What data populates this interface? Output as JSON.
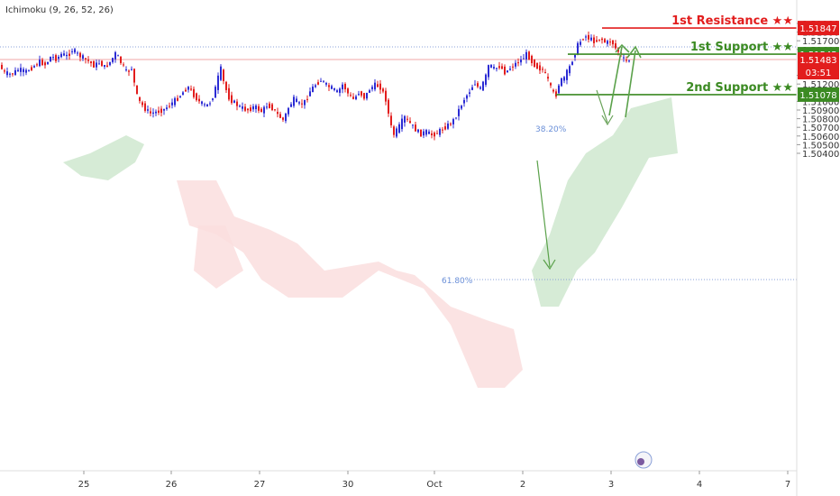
{
  "indicator_label": "Ichimoku (9, 26, 52, 26)",
  "colors": {
    "bull": "#2b2bd4",
    "bear": "#e21d1d",
    "resistance": "#e21d1d",
    "support": "#3b8a22",
    "cloud_green": "#cfe8cf",
    "cloud_red": "#fadede",
    "fib": "#6a8fd8",
    "price_line": "#f2a7a7",
    "arrow": "#5aa14a"
  },
  "chart_data": {
    "type": "candlestick",
    "title": "",
    "xlabel": "",
    "ylabel": "",
    "ylim": [
      1.504,
      1.52
    ],
    "grid": false,
    "x_ticks": [
      "25",
      "26",
      "27",
      "30",
      "Oct",
      "2",
      "3",
      "4",
      "7"
    ],
    "y_ticks": [
      "1.51900",
      "1.51800",
      "1.51700",
      "1.51600",
      "1.51300",
      "1.51200",
      "1.51000",
      "1.50900",
      "1.50800",
      "1.50700",
      "1.50600",
      "1.50500",
      "1.50400"
    ],
    "levels": [
      {
        "name": "1st Resistance ★★",
        "value": 1.51847,
        "label": "1.51847",
        "color": "resistance"
      },
      {
        "name": "1st Support ★★",
        "value": 1.51545,
        "label": "1.51545",
        "color": "support"
      },
      {
        "name": "2nd Support ★★",
        "value": 1.51078,
        "label": "1.51078",
        "color": "support"
      }
    ],
    "current_price": {
      "value": 1.51483,
      "label": "1.51483",
      "countdown": "03:51"
    },
    "fib_levels": [
      {
        "label": "38.20%",
        "value": 1.51545
      },
      {
        "label": "61.80%",
        "value": 1.51035
      }
    ],
    "series_path": [
      [
        0,
        1.5143
      ],
      [
        6,
        1.5133
      ],
      [
        14,
        1.5131
      ],
      [
        22,
        1.5137
      ],
      [
        30,
        1.5134
      ],
      [
        38,
        1.514
      ],
      [
        46,
        1.5146
      ],
      [
        52,
        1.5142
      ],
      [
        58,
        1.5152
      ],
      [
        64,
        1.5149
      ],
      [
        70,
        1.5155
      ],
      [
        76,
        1.5152
      ],
      [
        82,
        1.516
      ],
      [
        88,
        1.5154
      ],
      [
        94,
        1.515
      ],
      [
        100,
        1.5146
      ],
      [
        106,
        1.5141
      ],
      [
        112,
        1.5145
      ],
      [
        118,
        1.5139
      ],
      [
        124,
        1.5146
      ],
      [
        130,
        1.5156
      ],
      [
        136,
        1.5144
      ],
      [
        142,
        1.5133
      ],
      [
        148,
        1.5139
      ],
      [
        152,
        1.511
      ],
      [
        156,
        1.51
      ],
      [
        162,
        1.5092
      ],
      [
        168,
        1.5086
      ],
      [
        176,
        1.5088
      ],
      [
        184,
        1.5091
      ],
      [
        192,
        1.5098
      ],
      [
        198,
        1.5103
      ],
      [
        204,
        1.511
      ],
      [
        210,
        1.5117
      ],
      [
        216,
        1.5108
      ],
      [
        222,
        1.51
      ],
      [
        230,
        1.5094
      ],
      [
        236,
        1.5101
      ],
      [
        242,
        1.512
      ],
      [
        246,
        1.514
      ],
      [
        250,
        1.512
      ],
      [
        256,
        1.5103
      ],
      [
        262,
        1.5098
      ],
      [
        268,
        1.5093
      ],
      [
        276,
        1.509
      ],
      [
        284,
        1.5094
      ],
      [
        292,
        1.5088
      ],
      [
        298,
        1.5096
      ],
      [
        304,
        1.5092
      ],
      [
        310,
        1.5084
      ],
      [
        316,
        1.5078
      ],
      [
        322,
        1.5094
      ],
      [
        328,
        1.5103
      ],
      [
        334,
        1.5096
      ],
      [
        340,
        1.51
      ],
      [
        346,
        1.5113
      ],
      [
        352,
        1.512
      ],
      [
        358,
        1.5125
      ],
      [
        364,
        1.5118
      ],
      [
        370,
        1.5115
      ],
      [
        376,
        1.511
      ],
      [
        382,
        1.512
      ],
      [
        388,
        1.5108
      ],
      [
        394,
        1.5102
      ],
      [
        400,
        1.5111
      ],
      [
        406,
        1.5104
      ],
      [
        412,
        1.5115
      ],
      [
        418,
        1.5119
      ],
      [
        424,
        1.5116
      ],
      [
        430,
        1.5101
      ],
      [
        434,
        1.5076
      ],
      [
        438,
        1.5061
      ],
      [
        444,
        1.507
      ],
      [
        450,
        1.5082
      ],
      [
        456,
        1.5075
      ],
      [
        462,
        1.5068
      ],
      [
        468,
        1.5062
      ],
      [
        474,
        1.5065
      ],
      [
        480,
        1.5061
      ],
      [
        486,
        1.5063
      ],
      [
        492,
        1.5068
      ],
      [
        498,
        1.5072
      ],
      [
        504,
        1.5077
      ],
      [
        510,
        1.5089
      ],
      [
        516,
        1.5102
      ],
      [
        522,
        1.5111
      ],
      [
        528,
        1.5122
      ],
      [
        534,
        1.5113
      ],
      [
        540,
        1.5127
      ],
      [
        544,
        1.5143
      ],
      [
        550,
        1.5137
      ],
      [
        556,
        1.5141
      ],
      [
        562,
        1.5133
      ],
      [
        568,
        1.5139
      ],
      [
        574,
        1.5144
      ],
      [
        580,
        1.5148
      ],
      [
        586,
        1.5155
      ],
      [
        592,
        1.5145
      ],
      [
        598,
        1.5139
      ],
      [
        604,
        1.5136
      ],
      [
        610,
        1.5123
      ],
      [
        614,
        1.5111
      ],
      [
        618,
        1.5106
      ],
      [
        622,
        1.5122
      ],
      [
        628,
        1.5128
      ],
      [
        634,
        1.5141
      ],
      [
        638,
        1.5152
      ],
      [
        642,
        1.5164
      ],
      [
        646,
        1.517
      ],
      [
        650,
        1.5176
      ],
      [
        656,
        1.5172
      ],
      [
        662,
        1.5169
      ],
      [
        668,
        1.5173
      ],
      [
        674,
        1.5167
      ],
      [
        680,
        1.517
      ],
      [
        684,
        1.5162
      ],
      [
        688,
        1.5157
      ],
      [
        692,
        1.515
      ],
      [
        696,
        1.5146
      ],
      [
        700,
        1.5148
      ]
    ]
  }
}
